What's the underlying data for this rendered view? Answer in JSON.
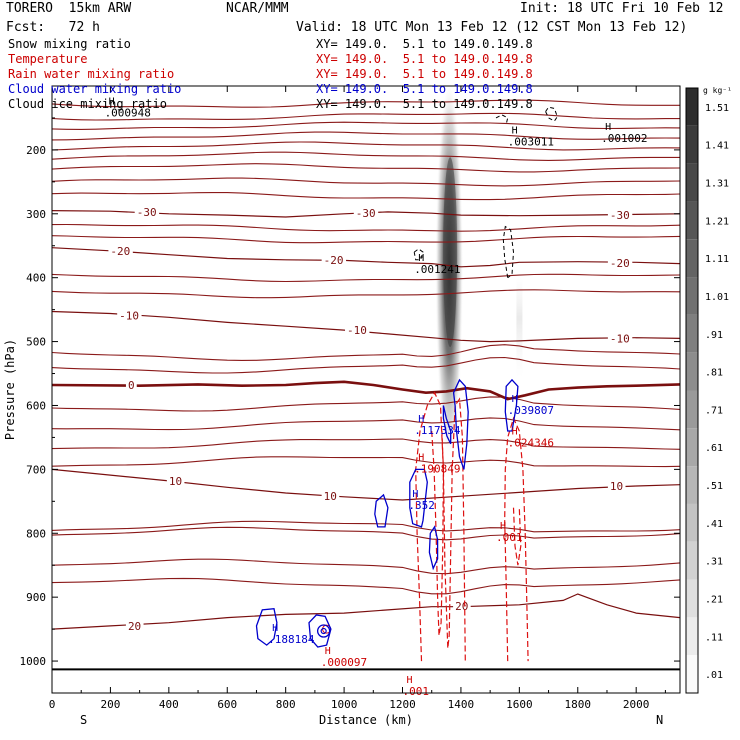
{
  "header": {
    "model": "TORERO  15km ARW",
    "source": "NCAR/MMM",
    "init": "Init: 18 UTC Fri 10 Feb 12",
    "fcst": "Fcst:   72 h",
    "valid": "Valid: 18 UTC Mon 13 Feb 12 (12 CST Mon 13 Feb 12)"
  },
  "legend": [
    {
      "label": "Snow mixing ratio",
      "xy": "XY= 149.0.  5.1 to 149.0.149.8",
      "color": "#000000",
      "xy_color": "#000000"
    },
    {
      "label": "Temperature",
      "xy": "XY= 149.0.  5.1 to 149.0.149.8",
      "color": "#cc0000",
      "xy_color": "#cc0000"
    },
    {
      "label": "Rain water mixing ratio",
      "xy": "XY= 149.0.  5.1 to 149.0.149.8",
      "color": "#cc0000",
      "xy_color": "#cc0000"
    },
    {
      "label": "Cloud water mixing ratio",
      "xy": "XY= 149.0.  5.1 to 149.0.149.8",
      "color": "#0000cc",
      "xy_color": "#0000cc"
    },
    {
      "label": "Cloud ice mixing ratio",
      "xy": "XY= 149.0.  5.1 to 149.0.149.8",
      "color": "#000000",
      "xy_color": "#000000"
    }
  ],
  "chart_data": {
    "type": "cross-section",
    "xlabel": "Distance (km)",
    "ylabel": "Pressure (hPa)",
    "xlim": [
      0,
      2150
    ],
    "ylim": [
      1050,
      100
    ],
    "x_ticks": [
      0,
      200,
      400,
      600,
      800,
      1000,
      1200,
      1400,
      1600,
      1800,
      2000
    ],
    "y_ticks": [
      200,
      300,
      400,
      500,
      600,
      700,
      800,
      900,
      1000
    ],
    "ends": {
      "left": "S",
      "right": "N"
    },
    "colorbar": {
      "unit": "g kg⁻¹",
      "labels": [
        "1.51",
        "1.41",
        "1.31",
        "1.21",
        "1.11",
        "1.01",
        ".91",
        ".81",
        ".71",
        ".61",
        ".51",
        ".41",
        ".31",
        ".21",
        ".11",
        ".01"
      ]
    },
    "surface_pressure": 1013,
    "temperature_contours": [
      {
        "value": 0,
        "points": [
          [
            0,
            568
          ],
          [
            300,
            569
          ],
          [
            500,
            567
          ],
          [
            650,
            569
          ],
          [
            800,
            568
          ],
          [
            900,
            565
          ],
          [
            1000,
            563
          ],
          [
            1100,
            568
          ],
          [
            1200,
            575
          ],
          [
            1280,
            580
          ],
          [
            1350,
            578
          ],
          [
            1420,
            573
          ],
          [
            1500,
            578
          ],
          [
            1560,
            590
          ],
          [
            1620,
            584
          ],
          [
            1700,
            575
          ],
          [
            1800,
            572
          ],
          [
            1900,
            570
          ],
          [
            2000,
            569
          ],
          [
            2150,
            567
          ]
        ],
        "label": "0",
        "label_at": [
          260,
          568
        ],
        "bold": true
      },
      {
        "value": -10,
        "points": [
          [
            0,
            453
          ],
          [
            200,
            456
          ],
          [
            400,
            462
          ],
          [
            600,
            470
          ],
          [
            800,
            476
          ],
          [
            1000,
            482
          ],
          [
            1150,
            488
          ],
          [
            1300,
            494
          ],
          [
            1400,
            498
          ],
          [
            1500,
            500
          ],
          [
            1600,
            499
          ],
          [
            1800,
            495
          ],
          [
            2000,
            494
          ],
          [
            2150,
            495
          ]
        ],
        "label": "-10",
        "label_at": [
          230,
          459
        ],
        "label2": "-10",
        "label2_at": [
          1010,
          482
        ],
        "label3": "-10",
        "label3_at": [
          1910,
          495
        ]
      },
      {
        "value": -20,
        "points": [
          [
            0,
            353
          ],
          [
            200,
            358
          ],
          [
            400,
            364
          ],
          [
            600,
            370
          ],
          [
            800,
            372
          ],
          [
            1000,
            373
          ],
          [
            1150,
            376
          ],
          [
            1300,
            378
          ],
          [
            1400,
            383
          ],
          [
            1500,
            381
          ],
          [
            1600,
            376
          ],
          [
            1800,
            375
          ],
          [
            2000,
            376
          ],
          [
            2150,
            378
          ]
        ],
        "label": "-20",
        "label_at": [
          200,
          358
        ],
        "label2": "-20",
        "label2_at": [
          930,
          372
        ],
        "label3": "-20",
        "label3_at": [
          1910,
          377
        ]
      },
      {
        "value": -30,
        "points": [
          [
            0,
            295
          ],
          [
            200,
            296
          ],
          [
            400,
            300
          ],
          [
            600,
            302
          ],
          [
            800,
            305
          ],
          [
            1000,
            300
          ],
          [
            1150,
            297
          ],
          [
            1300,
            299
          ],
          [
            1400,
            302
          ],
          [
            1600,
            303
          ],
          [
            1800,
            302
          ],
          [
            2000,
            301
          ],
          [
            2150,
            300
          ]
        ],
        "label": "-30",
        "label_at": [
          290,
          297
        ],
        "label2": "-30",
        "label2_at": [
          1040,
          299
        ],
        "label3": "-30",
        "label3_at": [
          1910,
          302
        ]
      },
      {
        "value": 10,
        "points": [
          [
            0,
            700
          ],
          [
            200,
            709
          ],
          [
            400,
            718
          ],
          [
            600,
            728
          ],
          [
            800,
            737
          ],
          [
            1000,
            743
          ],
          [
            1200,
            748
          ],
          [
            1400,
            742
          ],
          [
            1600,
            736
          ],
          [
            1800,
            730
          ],
          [
            2000,
            726
          ],
          [
            2150,
            724
          ]
        ],
        "label": "10",
        "label_at": [
          400,
          718
        ],
        "label2": "10",
        "label2_at": [
          930,
          742
        ],
        "label3": "10",
        "label3_at": [
          1910,
          726
        ]
      },
      {
        "value": 20,
        "points": [
          [
            0,
            950
          ],
          [
            200,
            945
          ],
          [
            400,
            940
          ],
          [
            600,
            932
          ],
          [
            800,
            927
          ],
          [
            1000,
            925
          ],
          [
            1150,
            920
          ],
          [
            1300,
            915
          ],
          [
            1400,
            915
          ],
          [
            1600,
            912
          ],
          [
            1750,
            905
          ],
          [
            1800,
            895
          ],
          [
            1900,
            912
          ],
          [
            2000,
            925
          ],
          [
            2150,
            932
          ]
        ],
        "label": "20",
        "label_at": [
          260,
          945
        ],
        "label2": "20",
        "label2_at": [
          1380,
          914
        ]
      }
    ],
    "max_labels": [
      {
        "text": ".000948",
        "at": [
          180,
          148
        ],
        "color": "#000000"
      },
      {
        "text": ".003011",
        "at": [
          1560,
          193
        ],
        "color": "#000000"
      },
      {
        "text": ".001002",
        "at": [
          1880,
          188
        ],
        "color": "#000000"
      },
      {
        "text": ".001241",
        "at": [
          1240,
          393
        ],
        "color": "#000000"
      },
      {
        "text": ".117334",
        "at": [
          1240,
          645
        ],
        "color": "#0000cc"
      },
      {
        "text": ".039807",
        "at": [
          1560,
          613
        ],
        "color": "#0000cc"
      },
      {
        "text": ".024346",
        "at": [
          1560,
          664
        ],
        "color": "#cc0000"
      },
      {
        "text": ".190849",
        "at": [
          1240,
          705
        ],
        "color": "#cc0000"
      },
      {
        "text": ".352",
        "at": [
          1220,
          762
        ],
        "color": "#0000cc"
      },
      {
        "text": ".001",
        "at": [
          1520,
          812
        ],
        "color": "#cc0000"
      },
      {
        "text": ".188184",
        "at": [
          740,
          972
        ],
        "color": "#0000cc"
      },
      {
        "text": ".000097",
        "at": [
          920,
          1008
        ],
        "color": "#cc0000"
      },
      {
        "text": ".001",
        "at": [
          1200,
          1053
        ],
        "color": "#cc0000"
      }
    ]
  }
}
